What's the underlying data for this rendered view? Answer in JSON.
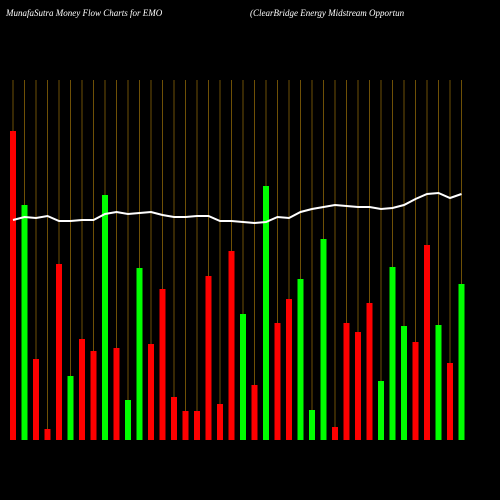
{
  "chart_data": {
    "type": "bar",
    "title": "MunafaSutra  Money Flow  Charts for EMO",
    "subtitle": "(ClearBridge   Energy Midstream Opportun",
    "categories": [
      null,
      null,
      null,
      null,
      null,
      null,
      null,
      null,
      null,
      null,
      null,
      null,
      null,
      null,
      null,
      null,
      null,
      null,
      null,
      null,
      null,
      null,
      null,
      null,
      null,
      null,
      null,
      null,
      null,
      null,
      null,
      null,
      null,
      null,
      null,
      null,
      null,
      null,
      null,
      null
    ],
    "values": [
      309,
      235,
      81,
      11,
      176,
      64,
      101,
      89,
      245,
      92,
      40,
      172,
      96,
      151,
      43,
      29,
      29,
      164,
      36,
      189,
      126,
      55,
      254,
      117,
      141,
      161,
      30,
      201,
      13,
      117,
      108,
      137,
      59,
      173,
      114,
      98,
      195,
      115,
      77,
      156
    ],
    "colors": [
      "#ff0000",
      "#00ff00",
      "#ff0000",
      "#ff0000",
      "#ff0000",
      "#00ff00",
      "#ff0000",
      "#ff0000",
      "#00ff00",
      "#ff0000",
      "#00ff00",
      "#00ff00",
      "#ff0000",
      "#ff0000",
      "#ff0000",
      "#ff0000",
      "#ff0000",
      "#ff0000",
      "#ff0000",
      "#ff0000",
      "#00ff00",
      "#ff0000",
      "#00ff00",
      "#ff0000",
      "#ff0000",
      "#00ff00",
      "#00ff00",
      "#00ff00",
      "#ff0000",
      "#ff0000",
      "#ff0000",
      "#ff0000",
      "#00ff00",
      "#00ff00",
      "#00ff00",
      "#ff0000",
      "#ff0000",
      "#00ff00",
      "#ff0000",
      "#00ff00"
    ],
    "line_values": [
      220,
      223,
      222,
      224,
      219,
      219,
      220,
      220,
      226,
      228,
      226,
      227,
      228,
      225,
      223,
      223,
      224,
      224,
      219,
      219,
      218,
      217,
      218,
      223,
      222,
      228,
      231,
      233,
      235,
      234,
      233,
      233,
      231,
      232,
      235,
      241,
      246,
      247,
      242,
      246
    ],
    "line_color": "#ffffff",
    "grid_color": "#b8860b",
    "ylim": [
      0,
      360
    ]
  }
}
